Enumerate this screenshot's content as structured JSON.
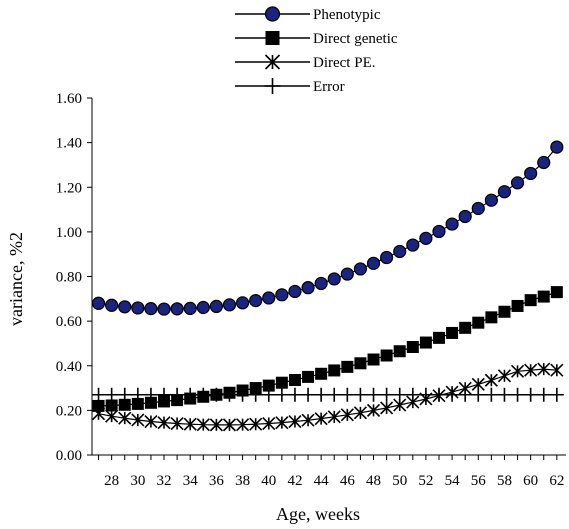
{
  "chart_data": {
    "type": "line",
    "xlabel": "Age, weeks",
    "ylabel": "variance,  %2",
    "x_tick_labels": [
      "28",
      "30",
      "32",
      "34",
      "36",
      "38",
      "40",
      "42",
      "44",
      "46",
      "48",
      "50",
      "52",
      "54",
      "56",
      "58",
      "60",
      "62"
    ],
    "y_tick_labels": [
      "0.00",
      "0.20",
      "0.40",
      "0.60",
      "0.80",
      "1.00",
      "1.20",
      "1.40",
      "1.60"
    ],
    "ylim": [
      0,
      1.6
    ],
    "xlim": [
      26.5,
      62.7
    ],
    "grid": false,
    "legend_position": "top-center",
    "x": [
      27,
      28,
      29,
      30,
      31,
      32,
      33,
      34,
      35,
      36,
      37,
      38,
      39,
      40,
      41,
      42,
      43,
      44,
      45,
      46,
      47,
      48,
      49,
      50,
      51,
      52,
      53,
      54,
      55,
      56,
      57,
      58,
      59,
      60,
      61,
      62
    ],
    "series": [
      {
        "name": "Phenotypic",
        "marker": "circle",
        "color": "#1a237e",
        "values": [
          0.68,
          0.671,
          0.664,
          0.659,
          0.656,
          0.654,
          0.655,
          0.657,
          0.661,
          0.666,
          0.673,
          0.682,
          0.692,
          0.704,
          0.718,
          0.733,
          0.75,
          0.769,
          0.789,
          0.811,
          0.834,
          0.859,
          0.885,
          0.912,
          0.941,
          0.971,
          1.002,
          1.035,
          1.069,
          1.105,
          1.142,
          1.18,
          1.22,
          1.262,
          1.311,
          1.38
        ]
      },
      {
        "name": "Direct genetic",
        "marker": "square",
        "color": "#000000",
        "values": [
          0.22,
          0.222,
          0.225,
          0.229,
          0.234,
          0.24,
          0.246,
          0.253,
          0.261,
          0.27,
          0.279,
          0.289,
          0.3,
          0.311,
          0.324,
          0.336,
          0.35,
          0.364,
          0.379,
          0.395,
          0.411,
          0.428,
          0.446,
          0.465,
          0.484,
          0.504,
          0.525,
          0.547,
          0.57,
          0.593,
          0.617,
          0.642,
          0.668,
          0.694,
          0.71,
          0.73
        ]
      },
      {
        "name": "Direct PE.",
        "marker": "asterisk",
        "color": "#000000",
        "values": [
          0.185,
          0.174,
          0.165,
          0.157,
          0.15,
          0.145,
          0.141,
          0.138,
          0.136,
          0.135,
          0.135,
          0.136,
          0.138,
          0.141,
          0.145,
          0.15,
          0.156,
          0.163,
          0.171,
          0.18,
          0.189,
          0.2,
          0.211,
          0.224,
          0.237,
          0.251,
          0.266,
          0.282,
          0.299,
          0.317,
          0.335,
          0.355,
          0.375,
          0.38,
          0.385,
          0.38
        ]
      },
      {
        "name": "Error",
        "marker": "plus",
        "color": "#000000",
        "values": [
          0.27,
          0.27,
          0.27,
          0.27,
          0.27,
          0.27,
          0.27,
          0.27,
          0.27,
          0.27,
          0.27,
          0.27,
          0.27,
          0.27,
          0.27,
          0.27,
          0.27,
          0.27,
          0.27,
          0.27,
          0.27,
          0.27,
          0.27,
          0.27,
          0.27,
          0.27,
          0.27,
          0.27,
          0.27,
          0.27,
          0.27,
          0.27,
          0.27,
          0.27,
          0.27,
          0.27
        ]
      }
    ]
  }
}
